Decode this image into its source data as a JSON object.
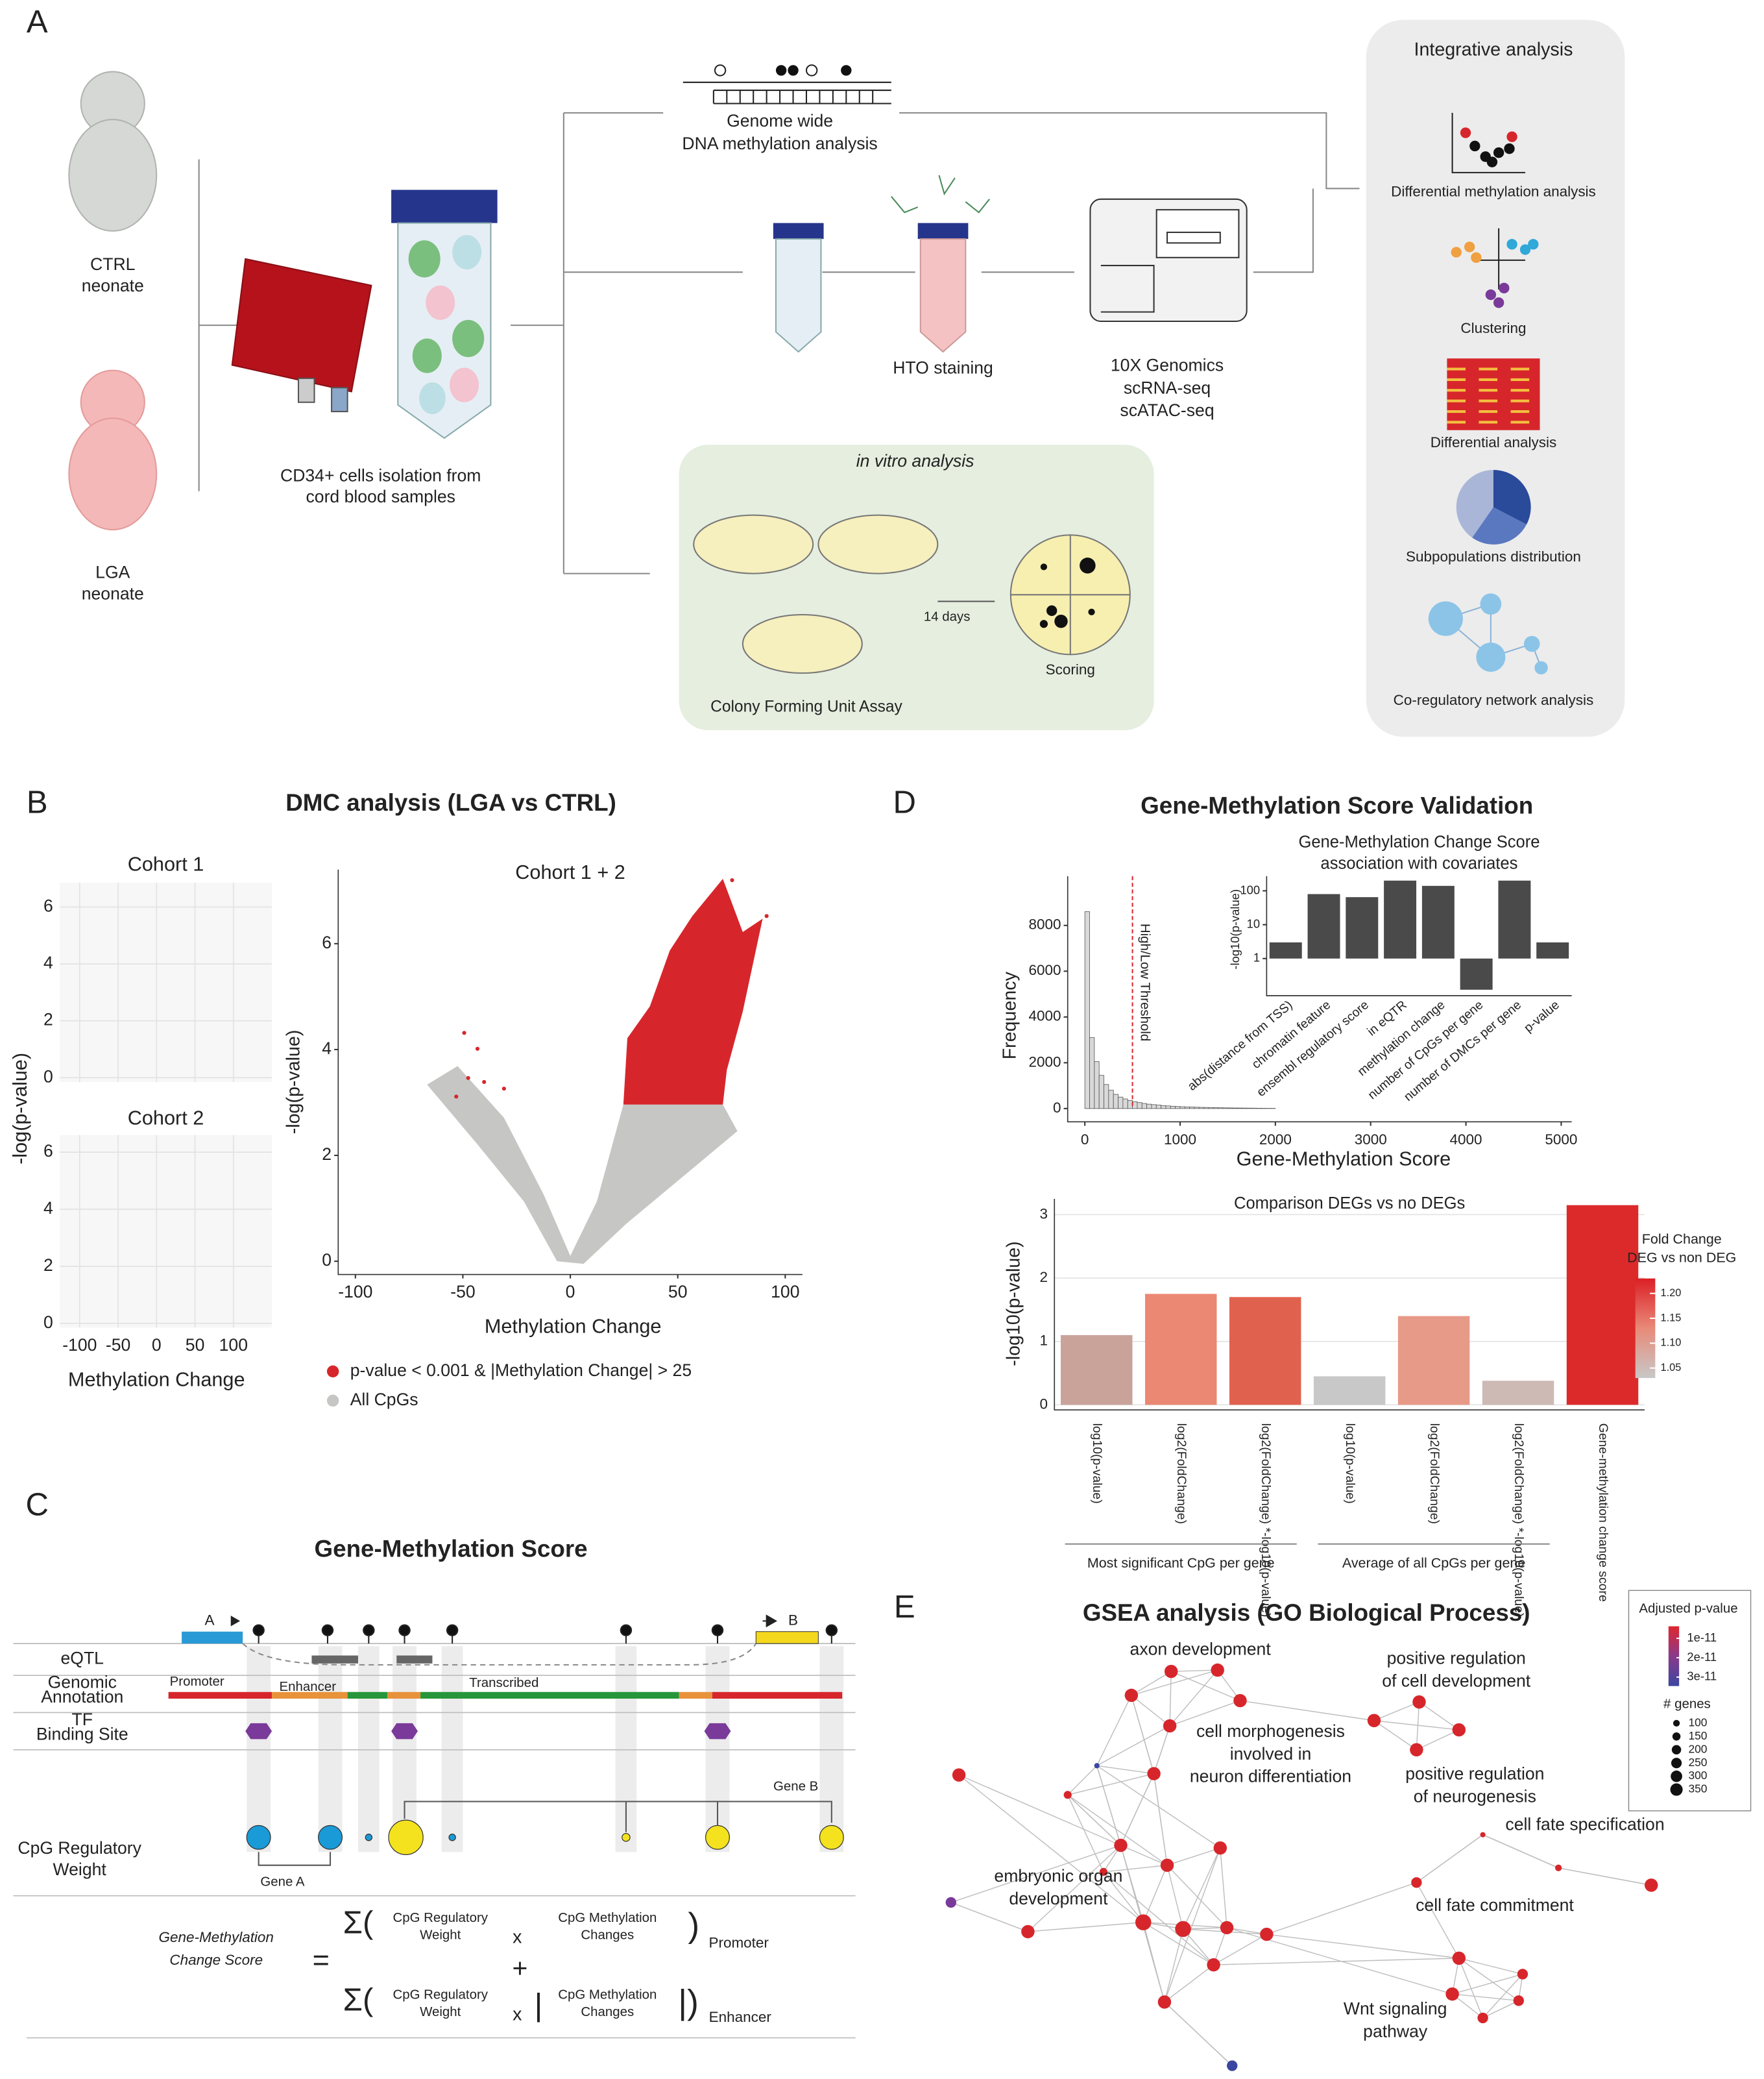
{
  "panel_a": {
    "label": "A",
    "ctrl": [
      "CTRL",
      "neonate"
    ],
    "lga": [
      "LGA",
      "neonate"
    ],
    "isolation": [
      "CD34+ cells isolation from",
      "cord blood samples"
    ],
    "methylation": [
      "Genome wide",
      "DNA methylation analysis"
    ],
    "hto": "HTO staining",
    "genomics": [
      "10X Genomics",
      "scRNA-seq",
      "scATAC-seq"
    ],
    "in_vitro": {
      "title": "in vitro analysis",
      "days": "14 days",
      "scoring": "Scoring",
      "assay": "Colony Forming Unit Assay"
    },
    "integrative": {
      "title": "Integrative analysis",
      "items": [
        "Differential methylation analysis",
        "Clustering",
        "Differential analysis",
        "Subpopulations distribution",
        "Co-regulatory network analysis"
      ]
    }
  },
  "panel_b": {
    "label": "B",
    "title": "DMC analysis (LGA vs CTRL)",
    "small_ylabel": "-log(p-value)",
    "small_xlabel": "Methylation Change",
    "legend": [
      {
        "name": "p-value < 0.001 & |Methylation Change| > 25",
        "color": "#d7262b"
      },
      {
        "name": "All CpGs",
        "color": "#c6c6c4"
      }
    ]
  },
  "panel_c": {
    "label": "C",
    "title": "Gene-Methylation Score",
    "rows": {
      "eqtl": "eQTL",
      "annotation": [
        "Genomic",
        "Annotation"
      ],
      "tf": [
        "TF",
        "Binding Site"
      ],
      "weight": [
        "CpG Regulatory",
        "Weight"
      ]
    },
    "gene_a_box": "A",
    "gene_b_box": "B",
    "promoter": "Promoter",
    "enhancer": "Enhancer",
    "transcribed": "Transcribed",
    "gene_a": "Gene A",
    "gene_b": "Gene B",
    "formula": {
      "lhs": [
        "Gene-Methylation",
        "Change Score"
      ],
      "equals": "=",
      "sum": "Σ(",
      "weight": [
        "CpG Regulatory",
        "Weight"
      ],
      "times": "x",
      "change": [
        "CpG Methylation",
        "Changes"
      ],
      "close": ")",
      "promoter": "Promoter",
      "plus": "+",
      "abs": "|",
      "close_abs": "|)",
      "enhancer": "Enhancer"
    }
  },
  "panel_d": {
    "label": "D",
    "title": "Gene-Methylation Score Validation"
  },
  "panel_e": {
    "label": "E",
    "title": "GSEA analysis (GO Biological Process)",
    "clusters": {
      "axon": "axon development",
      "pos_cell_dev": [
        "positive regulation",
        "of cell development"
      ],
      "morpho": [
        "cell morphogenesis",
        "involved in",
        "neuron differentiation"
      ],
      "pos_neuro": [
        "positive regulation",
        "of neurogenesis"
      ],
      "fate_spec": "cell fate specification",
      "organ": [
        "embryonic organ",
        "development"
      ],
      "fate_commit": "cell fate commitment",
      "wnt": [
        "Wnt signaling",
        "pathway"
      ]
    },
    "legend": {
      "title": "Adjusted p-value",
      "ticks": [
        1e-11,
        2e-11,
        3e-11
      ],
      "lim": [
        3.8e-12,
        3.46e-11
      ],
      "colors": [
        "#e0262f",
        "#8a3a8a",
        "#3a46a0"
      ],
      "size_title": "# genes",
      "sizes": [
        100,
        150,
        200,
        250,
        300,
        350
      ]
    }
  },
  "chart_data": [
    {
      "type": "volcano",
      "title": "Cohort 1",
      "xlim": [
        -126,
        150
      ],
      "ylim": [
        -0.15,
        6.85
      ],
      "xticks": [
        -100,
        -50,
        0,
        50,
        100
      ],
      "yticks": [
        0,
        2,
        4,
        6
      ],
      "grid": true
    },
    {
      "type": "volcano",
      "title": "Cohort 2",
      "xlim": [
        -126,
        150
      ],
      "ylim": [
        -0.15,
        6.6
      ],
      "xticks": [
        -100,
        -50,
        0,
        50,
        100
      ],
      "yticks": [
        0,
        2,
        4,
        6
      ],
      "grid": true
    },
    {
      "type": "volcano",
      "title": "Cohort 1 + 2",
      "xlabel": "Methylation Change",
      "ylabel": "-log(p-value)",
      "xlim": [
        -108,
        108
      ],
      "ylim": [
        -0.25,
        7.4
      ],
      "xticks": [
        -100,
        -50,
        0,
        50,
        100
      ],
      "yticks": [
        0,
        2,
        4,
        6
      ],
      "grid": false
    },
    {
      "type": "histogram",
      "xlabel": "Gene-Methylation Score",
      "ylabel": "Frequency",
      "bins": [
        0,
        50,
        100,
        150,
        200,
        250,
        300,
        350,
        400,
        450,
        500,
        550,
        600,
        650,
        700,
        750,
        800,
        850,
        900,
        950,
        1000,
        1050,
        1100,
        1150,
        1200,
        1250,
        1300,
        1350,
        1400,
        1450,
        1500,
        1550,
        1600,
        1650,
        1700,
        1750,
        1800,
        1850,
        1900,
        1950,
        2000
      ],
      "counts": [
        8600,
        3100,
        2050,
        1450,
        1050,
        800,
        620,
        500,
        420,
        350,
        300,
        260,
        220,
        190,
        170,
        150,
        130,
        115,
        100,
        90,
        80,
        72,
        65,
        58,
        52,
        47,
        42,
        38,
        34,
        30,
        27,
        24,
        22,
        20,
        18,
        16,
        14,
        12,
        10,
        9
      ],
      "color": "#d9d9d9",
      "threshold": {
        "value": 500,
        "label": "High/Low Threshold",
        "color": "#d7262b"
      },
      "xlim": [
        -180,
        5110
      ],
      "ylim": [
        -580,
        10150
      ],
      "xticks": [
        0,
        1000,
        2000,
        3000,
        4000,
        5000
      ],
      "yticks": [
        0,
        2000,
        4000,
        6000,
        8000
      ]
    },
    {
      "type": "logbar",
      "title": [
        "Gene-Methylation Change Score",
        "association with covariates"
      ],
      "ylabel": "-log10(p-value)",
      "categories": [
        "abs(distance from TSS)",
        "chromatin feature",
        "ensembl regulatory score",
        "in eQTR",
        "methylation change",
        "number of CpGs per gene",
        "number of DMCs per gene",
        "p-value"
      ],
      "values": [
        3,
        80,
        65,
        200,
        140,
        0.12,
        200,
        3
      ],
      "color": "#4a4a4a",
      "log": true,
      "ylim": [
        0.08,
        270
      ],
      "yticks": [
        1,
        10,
        100
      ]
    },
    {
      "type": "bar",
      "title": "Comparison DEGs vs no DEGs",
      "ylabel": "-log10(p-value)",
      "categories": [
        "log10(p-value)",
        "log2(FoldChange)",
        "log2(FoldChange) *-log10(p-value)",
        "log10(p-value)",
        "log2(FoldChange)",
        "log2(FoldChange) *-log10(p-value)",
        "Gene-methylation change score"
      ],
      "values": [
        1.1,
        1.75,
        1.7,
        0.45,
        1.4,
        0.38,
        3.15
      ],
      "colors": [
        "#c9a39a",
        "#ea8873",
        "#e0624e",
        "#c8c8c8",
        "#e89a88",
        "#cdbab5",
        "#dc2a2a"
      ],
      "groups": [
        "Most significant CpG per gene",
        "Average of all CpGs per gene"
      ],
      "colorbar": {
        "title": [
          "Fold Change",
          "DEG vs non DEG"
        ],
        "lim": [
          1.03,
          1.23
        ],
        "ticks": [
          1.05,
          {
            "value": 1.1,
            "label": "1.10"
          },
          1.15,
          {
            "value": 1.2,
            "label": "1.20"
          }
        ],
        "colors": [
          "#c8c8c8",
          "#e88a78",
          "#dc1f26"
        ]
      },
      "ylim": [
        -0.08,
        3.25
      ],
      "yticks": [
        0,
        1,
        2,
        3
      ],
      "grid": true
    }
  ]
}
